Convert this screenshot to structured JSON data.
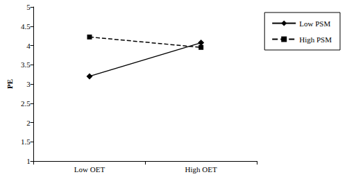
{
  "chart_data": {
    "type": "line",
    "y_label": "PE",
    "categories": [
      "Low OET",
      "High OET"
    ],
    "series": [
      {
        "name": "Low PSM",
        "color": "#000000",
        "marker": "diamond",
        "line_style": "solid",
        "values": [
          3.2,
          4.07
        ]
      },
      {
        "name": "High PSM",
        "color": "#000000",
        "marker": "square",
        "line_style": "dashed",
        "values": [
          4.22,
          3.95
        ]
      }
    ],
    "ylim": [
      1,
      5
    ],
    "yticks": [
      1,
      1.5,
      2,
      2.5,
      3,
      3.5,
      4,
      4.5,
      5
    ],
    "grid": false,
    "legend": "right"
  }
}
